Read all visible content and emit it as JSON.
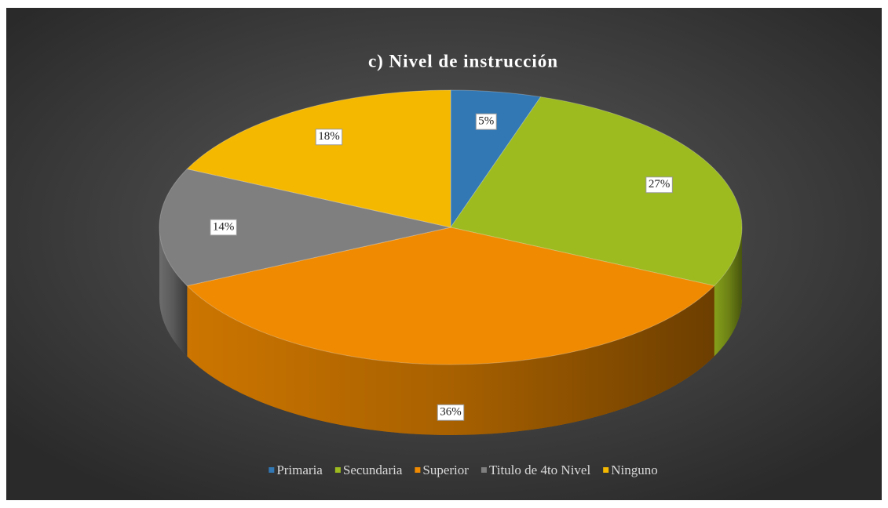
{
  "chart_data": {
    "type": "pie3d",
    "title": "c) Nivel de instrucción",
    "categories": [
      "Primaria",
      "Secundaria",
      "Superior",
      "Titulo de 4to Nivel",
      "Ninguno"
    ],
    "values": [
      5,
      27,
      36,
      14,
      18
    ],
    "value_labels": [
      "5%",
      "27%",
      "36%",
      "14%",
      "18%"
    ],
    "colors": [
      "#3278b4",
      "#9dbb1e",
      "#f08a00",
      "#7f7f7f",
      "#f5b800"
    ],
    "legend": "bottom"
  }
}
